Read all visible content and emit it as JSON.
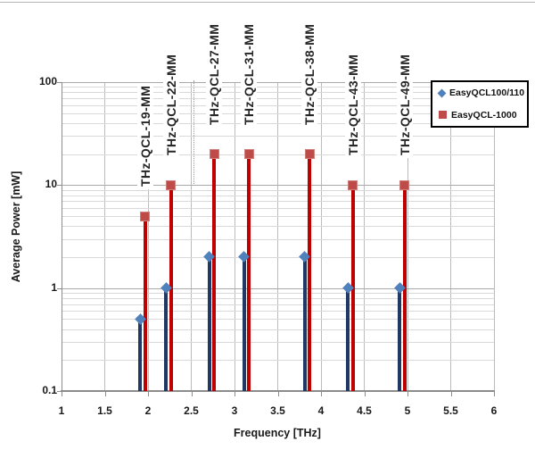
{
  "chart_data": {
    "type": "scatter",
    "subtype": "stem-lollipop",
    "title": "",
    "xlabel": "Frequency [THz]",
    "ylabel": "Average Power [mW]",
    "x_axis": {
      "min": 1,
      "max": 6,
      "tick_step": 0.5,
      "tick_labels": [
        "1",
        "1.5",
        "2",
        "2.5",
        "3",
        "3.5",
        "4",
        "4.5",
        "5",
        "5.5",
        "6"
      ]
    },
    "y_axis": {
      "scale": "log",
      "min": 0.1,
      "max": 100,
      "tick_values": [
        100,
        10,
        1,
        0.1
      ],
      "tick_labels": [
        "100",
        "10",
        "1",
        "0.1"
      ],
      "minor_gridlines": true
    },
    "x": [
      1.9,
      2.2,
      2.7,
      3.1,
      3.8,
      4.3,
      4.9
    ],
    "point_labels": [
      "THz-QCL-19-MM",
      "THz-QCL-22-MM",
      "THz-QCL-27-MM",
      "THz-QCL-31-MM",
      "THz-QCL-38-MM",
      "THz-QCL-43-MM",
      "THz-QCL-49-MM"
    ],
    "series": [
      {
        "name": "EasyQCL100/110",
        "marker": "diamond",
        "marker_color": "#4F81BD",
        "stem_color": "#1F3864",
        "values": [
          0.5,
          1,
          2,
          2,
          2,
          1,
          1
        ]
      },
      {
        "name": "EasyQCL-1000",
        "marker": "square",
        "marker_color": "#BE4B48",
        "stem_color": "#C00000",
        "values": [
          5,
          10,
          20,
          20,
          20,
          10,
          10
        ]
      }
    ],
    "legend_position": "top-right",
    "grid": {
      "vertical_lines_every_thz": 0.5,
      "horizontal_major": true,
      "horizontal_minor_log": true
    }
  },
  "colors": {
    "background": "#ffffff",
    "gridline_major": "#a9a9a9",
    "gridline_minor": "#d9d9d9",
    "axis_line": "#8c8c8c",
    "text": "#1a1a1a",
    "legend_border": "#000000"
  }
}
